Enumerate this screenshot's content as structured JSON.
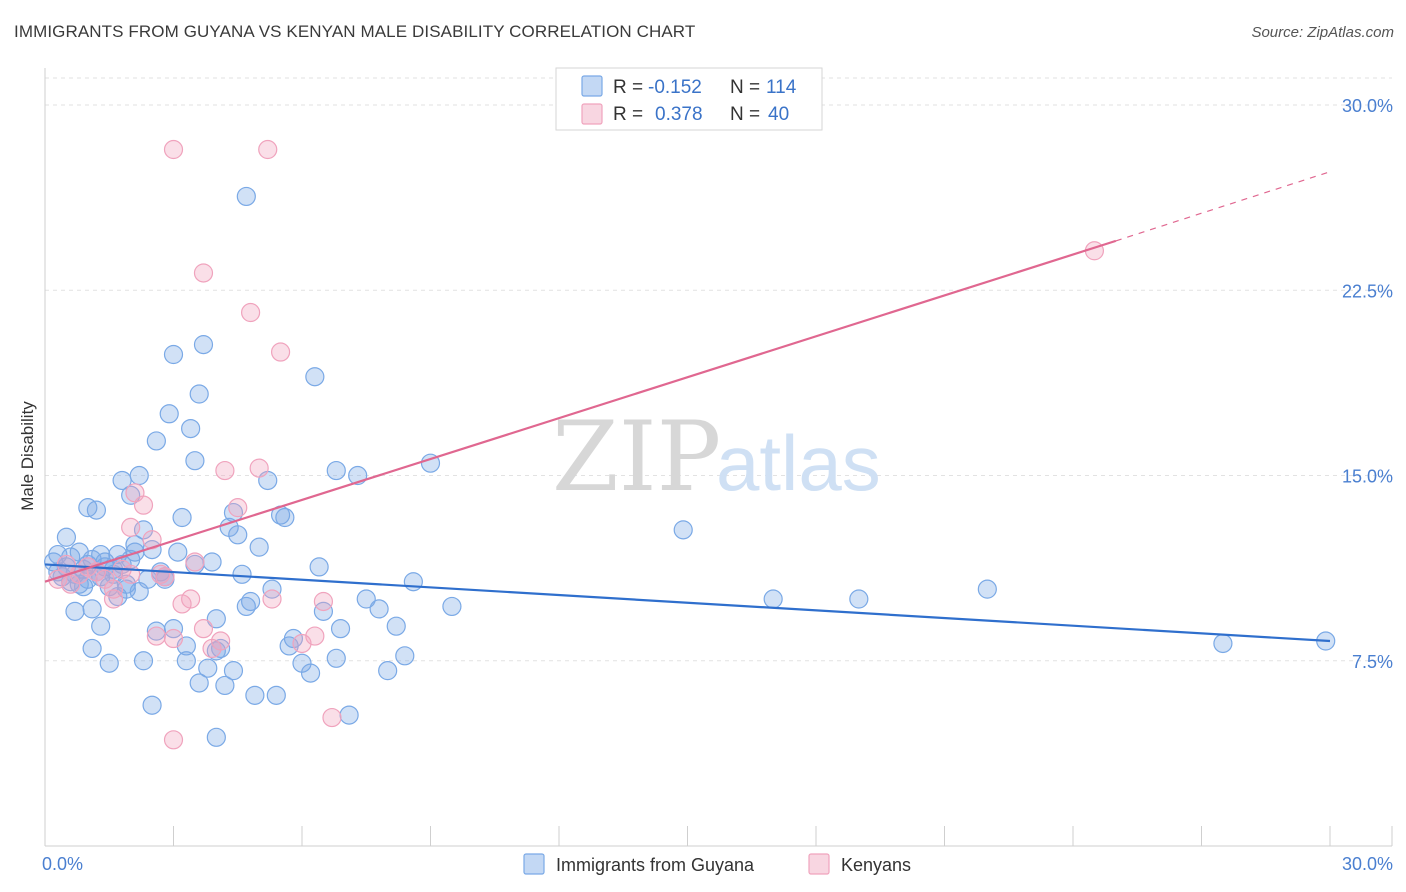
{
  "header": {
    "title": "IMMIGRANTS FROM GUYANA VS KENYAN MALE DISABILITY CORRELATION CHART",
    "source": "Source: ZipAtlas.com"
  },
  "watermark": {
    "zip": "ZIP",
    "atlas": "atlas"
  },
  "legend_box": {
    "rows": [
      {
        "r_label": "R =",
        "r_value": "-0.152",
        "n_label": "N =",
        "n_value": "114",
        "color": "#7aa9e6"
      },
      {
        "r_label": "R =",
        "r_value": "0.378",
        "n_label": "N =",
        "n_value": "40",
        "color": "#f0a3bd"
      }
    ]
  },
  "bottom_legend": [
    {
      "label": "Immigrants from Guyana",
      "color": "#7aa9e6"
    },
    {
      "label": "Kenyans",
      "color": "#f0a3bd"
    }
  ],
  "chart_data": {
    "type": "scatter",
    "xlabel": "",
    "ylabel": "Male Disability",
    "xlim": [
      0,
      30
    ],
    "ylim": [
      0,
      31.5
    ],
    "y_ticks": [
      {
        "value": 7.5,
        "label": "7.5%"
      },
      {
        "value": 15.0,
        "label": "15.0%"
      },
      {
        "value": 22.5,
        "label": "22.5%"
      },
      {
        "value": 30.0,
        "label": "30.0%"
      }
    ],
    "x_tick_labels": [
      {
        "value": 0,
        "label": "0.0%"
      },
      {
        "value": 30,
        "label": "30.0%"
      }
    ],
    "x_minor_ticks": [
      3,
      6,
      9,
      12,
      15,
      18,
      21,
      24,
      27,
      30
    ],
    "grid": true,
    "legend": "top-center",
    "series": [
      {
        "name": "Immigrants from Guyana",
        "color": "#7aa9e6",
        "line_color": "#2f6fcd",
        "trend": {
          "x0": 0,
          "y0": 11.4,
          "x1": 30,
          "y1": 8.3,
          "dashed_from": null
        },
        "points": [
          [
            0.2,
            11.5
          ],
          [
            0.3,
            11.1
          ],
          [
            0.4,
            10.9
          ],
          [
            0.5,
            11.3
          ],
          [
            0.6,
            11.7
          ],
          [
            0.7,
            11.0
          ],
          [
            0.8,
            10.6
          ],
          [
            0.9,
            11.2
          ],
          [
            1.0,
            10.8
          ],
          [
            1.1,
            11.6
          ],
          [
            0.3,
            11.8
          ],
          [
            0.5,
            12.5
          ],
          [
            0.6,
            10.7
          ],
          [
            0.8,
            11.9
          ],
          [
            1.0,
            11.4
          ],
          [
            1.2,
            11.1
          ],
          [
            1.3,
            10.9
          ],
          [
            1.4,
            11.5
          ],
          [
            1.5,
            10.5
          ],
          [
            1.6,
            11.2
          ],
          [
            0.9,
            10.5
          ],
          [
            1.1,
            9.6
          ],
          [
            1.0,
            13.7
          ],
          [
            1.2,
            13.6
          ],
          [
            1.3,
            11.8
          ],
          [
            1.4,
            11.3
          ],
          [
            1.6,
            11.0
          ],
          [
            1.7,
            11.8
          ],
          [
            1.8,
            11.4
          ],
          [
            1.9,
            10.6
          ],
          [
            2.0,
            11.6
          ],
          [
            2.1,
            11.9
          ],
          [
            2.2,
            10.3
          ],
          [
            1.8,
            14.8
          ],
          [
            2.0,
            14.2
          ],
          [
            2.2,
            15.0
          ],
          [
            2.3,
            12.8
          ],
          [
            2.5,
            12.0
          ],
          [
            2.4,
            10.8
          ],
          [
            2.6,
            16.4
          ],
          [
            2.7,
            11.1
          ],
          [
            2.8,
            10.8
          ],
          [
            2.9,
            17.5
          ],
          [
            3.0,
            19.9
          ],
          [
            3.1,
            11.9
          ],
          [
            3.2,
            13.3
          ],
          [
            3.3,
            8.1
          ],
          [
            3.4,
            16.9
          ],
          [
            3.5,
            15.6
          ],
          [
            3.6,
            18.3
          ],
          [
            3.7,
            20.3
          ],
          [
            3.9,
            11.5
          ],
          [
            4.0,
            9.2
          ],
          [
            4.1,
            8.0
          ],
          [
            4.3,
            12.9
          ],
          [
            4.4,
            13.5
          ],
          [
            4.5,
            12.6
          ],
          [
            4.6,
            11.0
          ],
          [
            4.7,
            9.7
          ],
          [
            4.8,
            9.9
          ],
          [
            5.0,
            12.1
          ],
          [
            5.2,
            14.8
          ],
          [
            5.3,
            10.4
          ],
          [
            5.5,
            13.4
          ],
          [
            5.6,
            13.3
          ],
          [
            5.8,
            8.4
          ],
          [
            6.0,
            7.4
          ],
          [
            6.2,
            7.0
          ],
          [
            6.4,
            11.3
          ],
          [
            6.5,
            9.5
          ],
          [
            6.8,
            7.6
          ],
          [
            6.9,
            8.8
          ],
          [
            7.1,
            5.3
          ],
          [
            7.3,
            15.0
          ],
          [
            7.5,
            10.0
          ],
          [
            7.8,
            9.6
          ],
          [
            8.0,
            7.1
          ],
          [
            8.2,
            8.9
          ],
          [
            8.4,
            7.7
          ],
          [
            8.6,
            10.7
          ],
          [
            2.3,
            7.5
          ],
          [
            2.5,
            5.7
          ],
          [
            1.5,
            7.4
          ],
          [
            1.3,
            8.9
          ],
          [
            1.1,
            8.0
          ],
          [
            1.7,
            10.1
          ],
          [
            2.6,
            8.7
          ],
          [
            3.0,
            8.8
          ],
          [
            3.3,
            7.5
          ],
          [
            3.6,
            6.6
          ],
          [
            3.8,
            7.2
          ],
          [
            4.2,
            6.5
          ],
          [
            4.4,
            7.1
          ],
          [
            4.9,
            6.1
          ],
          [
            5.4,
            6.1
          ],
          [
            2.8,
            10.9
          ],
          [
            1.9,
            10.4
          ],
          [
            0.7,
            9.5
          ],
          [
            3.5,
            11.4
          ],
          [
            4.0,
            7.9
          ],
          [
            4.7,
            26.3
          ],
          [
            6.3,
            19.0
          ],
          [
            5.7,
            8.1
          ],
          [
            2.1,
            12.2
          ],
          [
            9.0,
            15.5
          ],
          [
            9.5,
            9.7
          ],
          [
            14.9,
            12.8
          ],
          [
            17.0,
            10.0
          ],
          [
            19.0,
            10.0
          ],
          [
            22.0,
            10.4
          ],
          [
            27.5,
            8.2
          ],
          [
            29.9,
            8.3
          ],
          [
            4.0,
            4.4
          ],
          [
            6.8,
            15.2
          ]
        ]
      },
      {
        "name": "Kenyans",
        "color": "#f0a3bd",
        "line_color": "#e06790",
        "trend": {
          "x0": 0,
          "y0": 10.7,
          "x1": 25.0,
          "y1": 24.5,
          "dashed_to_x": 30.0,
          "dashed_to_y": 27.3
        },
        "points": [
          [
            0.3,
            10.8
          ],
          [
            0.5,
            11.4
          ],
          [
            0.6,
            10.6
          ],
          [
            0.8,
            11.0
          ],
          [
            1.0,
            11.3
          ],
          [
            1.2,
            11.1
          ],
          [
            1.4,
            10.8
          ],
          [
            1.6,
            10.4
          ],
          [
            1.8,
            11.2
          ],
          [
            2.0,
            12.9
          ],
          [
            2.1,
            14.3
          ],
          [
            2.3,
            13.8
          ],
          [
            2.5,
            12.4
          ],
          [
            2.6,
            8.5
          ],
          [
            2.7,
            11.0
          ],
          [
            2.8,
            10.9
          ],
          [
            3.0,
            8.4
          ],
          [
            3.2,
            9.8
          ],
          [
            3.4,
            10.0
          ],
          [
            3.5,
            11.5
          ],
          [
            3.7,
            8.8
          ],
          [
            3.9,
            8.0
          ],
          [
            4.1,
            8.3
          ],
          [
            4.2,
            15.2
          ],
          [
            4.5,
            13.7
          ],
          [
            4.8,
            21.6
          ],
          [
            5.0,
            15.3
          ],
          [
            5.3,
            10.0
          ],
          [
            5.5,
            20.0
          ],
          [
            6.0,
            8.2
          ],
          [
            6.3,
            8.5
          ],
          [
            6.5,
            9.9
          ],
          [
            6.7,
            5.2
          ],
          [
            3.0,
            28.2
          ],
          [
            5.2,
            28.2
          ],
          [
            3.7,
            23.2
          ],
          [
            1.6,
            10.0
          ],
          [
            2.0,
            11.0
          ],
          [
            3.0,
            4.3
          ],
          [
            24.5,
            24.1
          ]
        ]
      }
    ]
  }
}
